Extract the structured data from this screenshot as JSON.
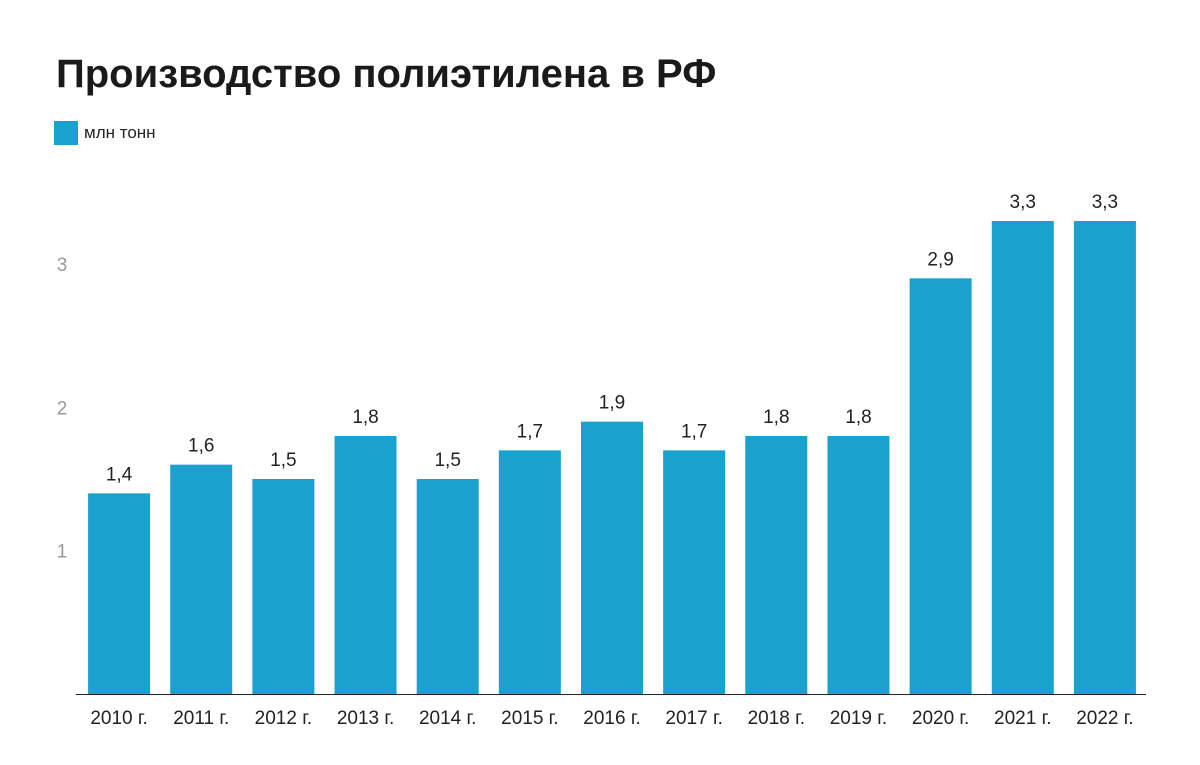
{
  "chart_data": {
    "type": "bar",
    "title": "Производство полиэтилена в РФ",
    "legend": {
      "position": "top-left",
      "entries": [
        "млн тонн"
      ]
    },
    "categories": [
      "2010 г.",
      "2011 г.",
      "2012 г.",
      "2013 г.",
      "2014 г.",
      "2015 г.",
      "2016 г.",
      "2017 г.",
      "2018 г.",
      "2019 г.",
      "2020 г.",
      "2021 г.",
      "2022 г."
    ],
    "series": [
      {
        "name": "млн тонн",
        "values": [
          1.4,
          1.6,
          1.5,
          1.8,
          1.5,
          1.7,
          1.9,
          1.7,
          1.8,
          1.8,
          2.9,
          3.3,
          3.3
        ],
        "value_labels": [
          "1,4",
          "1,6",
          "1,5",
          "1,8",
          "1,5",
          "1,7",
          "1,9",
          "1,7",
          "1,8",
          "1,8",
          "2,9",
          "3,3",
          "3,3"
        ]
      }
    ],
    "y_ticks": [
      "1",
      "2",
      "3"
    ],
    "ylim": [
      0,
      3.3
    ],
    "grid": false,
    "colors": {
      "bar": "#1aa1cd",
      "axis": "#222222",
      "y_tick": "#9a9a9a"
    }
  }
}
